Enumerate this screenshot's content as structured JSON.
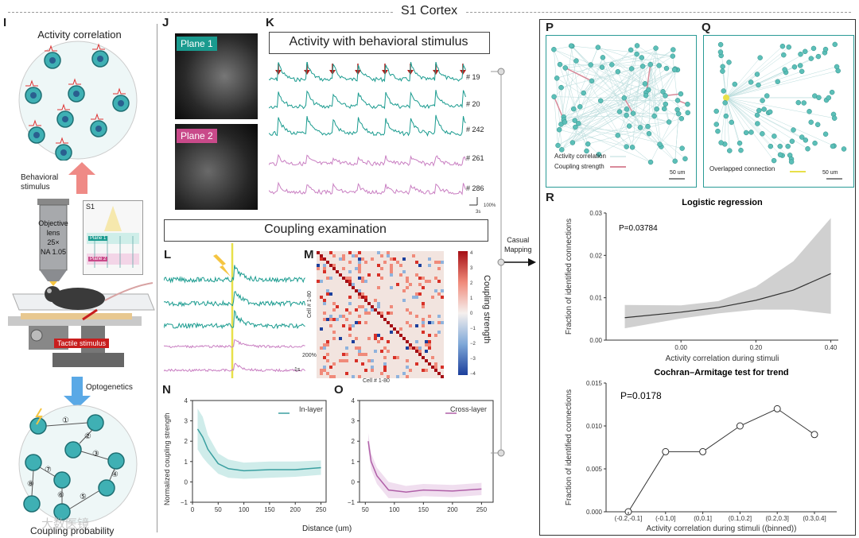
{
  "header": {
    "title": "S1 Cortex"
  },
  "panel_labels": {
    "I": "I",
    "J": "J",
    "K": "K",
    "L": "L",
    "M": "M",
    "N": "N",
    "O": "O",
    "P": "P",
    "Q": "Q",
    "R": "R"
  },
  "panel_i": {
    "top_title": "Activity correlation",
    "behavioral_stimulus": "Behavioral\nstimulus",
    "objective_lines": [
      "Objective",
      "lens",
      "25×",
      "NA 1.05"
    ],
    "s1_label": "S1",
    "plane1": "Plane 1",
    "plane2": "Plane 2",
    "tactile": "Tactile stimulus",
    "optogenetics": "Optogenetics",
    "bottom_title": "Coupling probability",
    "path_numbers": [
      "①",
      "②",
      "③",
      "④",
      "⑤",
      "⑥",
      "⑦",
      "⑧"
    ]
  },
  "panel_j": {
    "plane1": "Plane 1",
    "plane2": "Plane 2"
  },
  "panel_k": {
    "title": "Activity with behavioral stimulus",
    "cells": [
      "# 19",
      "# 20",
      "# 242",
      "# 261",
      "# 286"
    ],
    "scale_time": "3s",
    "scale_amp": "100%"
  },
  "coupling_title": "Coupling examination",
  "panel_l": {
    "scale_time": "1s",
    "scale_amp": "200%"
  },
  "panel_m": {
    "ylabel": "Cell # 1-80",
    "xlabel": "Cell # 1-80",
    "colorbar_label": "Coupling strength",
    "colorbar_ticks": [
      "4",
      "3",
      "2",
      "1",
      "0",
      "−1",
      "−2",
      "−3",
      "−4"
    ]
  },
  "panel_n": {
    "legend": "In-layer",
    "ylabel": "Normalized coupling strength",
    "yticks": [
      "4",
      "3",
      "2",
      "1",
      "0",
      "−1"
    ],
    "xticks": [
      "0",
      "50",
      "100",
      "150",
      "200",
      "250"
    ]
  },
  "panel_o": {
    "legend": "Cross-layer",
    "yticks": [
      "4",
      "3",
      "2",
      "1",
      "0",
      "−1"
    ],
    "xticks": [
      "50",
      "100",
      "150",
      "200",
      "250"
    ]
  },
  "distance_label": "Distance (um)",
  "casual_mapping": "Casual\nMapping",
  "panel_p": {
    "legend1": "Activity correlation",
    "legend2": "Coupling strength",
    "scale": "50 um"
  },
  "panel_q": {
    "legend": "Overlapped connection",
    "scale": "50 um"
  },
  "watermark": "大数医镜",
  "colors": {
    "teal": "#1a9b8f",
    "pink": "#c97fc2",
    "red": "#b0201c",
    "orange": "#f08a7a",
    "cell": "#3fb0b4"
  },
  "chart_data": [
    {
      "type": "line",
      "title": "Logistic regression",
      "annotation": "P=0.03784",
      "xlabel": "Activity correlation during stimuli",
      "ylabel": "Fraction of identified connections",
      "x": [
        -0.15,
        0.0,
        0.1,
        0.2,
        0.3,
        0.4
      ],
      "y": [
        0.0053,
        0.0066,
        0.0077,
        0.0094,
        0.0118,
        0.0157
      ],
      "ci_low": [
        0.0028,
        0.0051,
        0.0063,
        0.0072,
        0.0072,
        0.0062
      ],
      "ci_high": [
        0.0083,
        0.0082,
        0.0092,
        0.0126,
        0.0186,
        0.0288
      ],
      "xticks": [
        "0.00",
        "0.20",
        "0.40"
      ],
      "yticks": [
        "0.00",
        "0.01",
        "0.02",
        "0.03"
      ],
      "xlim": [
        -0.2,
        0.42
      ],
      "ylim": [
        0,
        0.03
      ]
    },
    {
      "type": "line",
      "title": "Cochran–Armitage test for trend",
      "annotation": "P=0.0178",
      "xlabel": "Activity correlation during stimuli ((binned))",
      "ylabel": "Fraction of identified connections",
      "categories": [
        "(-0.2,-0.1]",
        "(-0.1,0]",
        "(0,0.1]",
        "(0.1,0.2]",
        "(0.2,0.3]",
        "(0.3,0.4]"
      ],
      "values": [
        0.0,
        0.007,
        0.007,
        0.01,
        0.012,
        0.009
      ],
      "yticks": [
        "0.000",
        "0.005",
        "0.010",
        "0.015"
      ],
      "ylim": [
        0,
        0.015
      ]
    }
  ],
  "n_curve": {
    "x": [
      10,
      20,
      30,
      50,
      70,
      100,
      150,
      200,
      250
    ],
    "y": [
      2.6,
      2.2,
      1.6,
      0.9,
      0.65,
      0.55,
      0.6,
      0.6,
      0.7
    ],
    "lo": [
      1.6,
      1.2,
      0.9,
      0.4,
      0.2,
      0.15,
      0.2,
      0.25,
      0.35
    ],
    "hi": [
      3.6,
      3.2,
      2.3,
      1.4,
      1.1,
      0.95,
      1.0,
      1.0,
      1.05
    ]
  },
  "o_curve": {
    "x": [
      55,
      60,
      70,
      90,
      120,
      150,
      200,
      250
    ],
    "y": [
      2.0,
      1.0,
      0.3,
      -0.4,
      -0.5,
      -0.4,
      -0.45,
      -0.35
    ],
    "lo": [
      1.6,
      0.6,
      -0.1,
      -0.8,
      -0.8,
      -0.7,
      -0.75,
      -0.65
    ],
    "hi": [
      2.4,
      1.4,
      0.7,
      0.0,
      -0.2,
      -0.1,
      -0.15,
      -0.05
    ]
  }
}
